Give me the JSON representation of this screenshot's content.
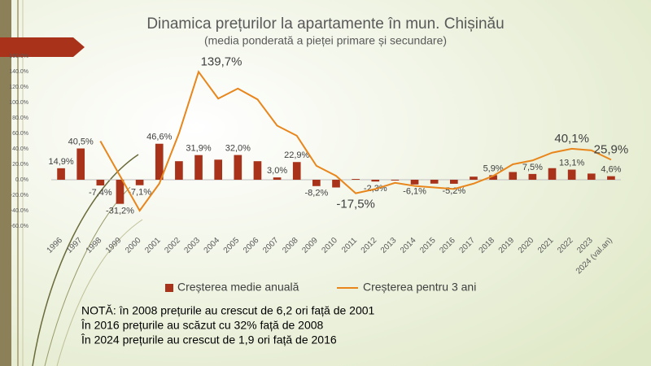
{
  "chart_data": {
    "type": "bar_line",
    "title": "Dinamica prețurilor la apartamente în mun. Chișinău",
    "subtitle": "(media ponderată a pieței primare și secundare)",
    "categories": [
      "1996",
      "1997",
      "1998",
      "1999",
      "2000",
      "2001",
      "2002",
      "2003",
      "2004",
      "2005",
      "2006",
      "2007",
      "2008",
      "2009",
      "2010",
      "2011",
      "2012",
      "2013",
      "2014",
      "2015",
      "2016",
      "2017",
      "2018",
      "2019",
      "2020",
      "2021",
      "2022",
      "2023",
      "2024 (val.an)"
    ],
    "series": [
      {
        "name": "Creșterea medie anuală",
        "type": "bar",
        "color": "#a8321a",
        "values": [
          14.9,
          40.5,
          -7.4,
          -31.2,
          -7.1,
          46.6,
          24,
          31.9,
          26,
          32.0,
          24,
          3.0,
          22.9,
          -8.2,
          -10,
          1,
          -2.3,
          -1,
          -6.1,
          -5,
          -5.2,
          4,
          5.9,
          10,
          7.5,
          15,
          13.1,
          8,
          4.6
        ],
        "value_labels": [
          "14,9%",
          "40,5%",
          "-7,4%",
          "-31,2%",
          "-7,1%",
          "46,6%",
          null,
          "31,9%",
          null,
          "32,0%",
          null,
          "3,0%",
          "22,9%",
          "-8,2%",
          null,
          null,
          "-2,3%",
          null,
          "-6,1%",
          null,
          "-5,2%",
          null,
          "5,9%",
          null,
          "7,5%",
          null,
          "13,1%",
          null,
          "4,6%"
        ]
      },
      {
        "name": "Creșterea pentru 3 ani",
        "type": "line",
        "color": "#e8861c",
        "values": [
          null,
          null,
          50,
          5,
          -40,
          -5,
          60,
          139.7,
          105,
          118,
          104,
          70,
          57,
          18,
          5,
          -17.5,
          -12,
          -4,
          -8,
          -10,
          -12,
          -5,
          5,
          20,
          25,
          35,
          40.1,
          38,
          25.9
        ],
        "value_labels": [
          null,
          null,
          null,
          null,
          null,
          null,
          null,
          "139,7%",
          null,
          null,
          null,
          null,
          null,
          null,
          null,
          "-17,5%",
          null,
          null,
          null,
          null,
          null,
          null,
          null,
          null,
          null,
          null,
          "40,1%",
          null,
          "25,9%"
        ]
      }
    ],
    "ylim": [
      -60,
      160
    ],
    "yticks": [
      {
        "value": -60,
        "label": "-60.0%"
      },
      {
        "value": -40,
        "label": "-40.0%"
      },
      {
        "value": -20,
        "label": "-20.0%"
      },
      {
        "value": 0,
        "label": "0.0%"
      },
      {
        "value": 20,
        "label": "20.0%"
      },
      {
        "value": 40,
        "label": "40.0%"
      },
      {
        "value": 60,
        "label": "60.0%"
      },
      {
        "value": 80,
        "label": "80.0%"
      },
      {
        "value": 100,
        "label": "100.0%"
      },
      {
        "value": 120,
        "label": "120.0%"
      },
      {
        "value": 140,
        "label": "140.0%"
      },
      {
        "value": 160,
        "label": "160.0%"
      }
    ],
    "legend": "bottom",
    "notes": [
      "NOTĂ: în 2008 prețurile au crescut de 6,2 ori față de 2001",
      "În 2016 prețurile au scăzut cu 32% față de 2008",
      "În 2024 prețurile au crescut de 1,9 ori față de 2016"
    ]
  }
}
